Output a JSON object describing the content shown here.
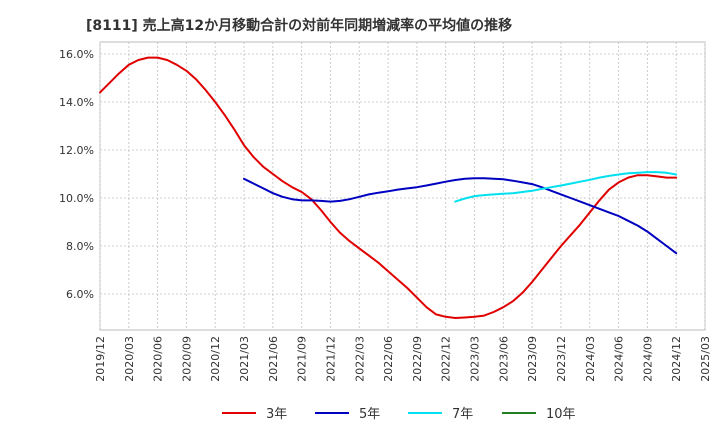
{
  "chart_data": {
    "type": "line",
    "title": "[8111]  売上高12か月移動合計の対前年同期増減率の平均値の推移",
    "xlabel": "",
    "ylabel": "",
    "ylim": [
      4.5,
      16.5
    ],
    "y_ticks": [
      6,
      8,
      10,
      12,
      14,
      16
    ],
    "y_tick_labels": [
      "6.0%",
      "8.0%",
      "10.0%",
      "12.0%",
      "14.0%",
      "16.0%"
    ],
    "x_ticks": [
      "2019/12",
      "2020/03",
      "2020/06",
      "2020/09",
      "2020/12",
      "2021/03",
      "2021/06",
      "2021/09",
      "2021/12",
      "2022/03",
      "2022/06",
      "2022/09",
      "2022/12",
      "2023/03",
      "2023/06",
      "2023/09",
      "2023/12",
      "2024/03",
      "2024/06",
      "2024/09",
      "2024/12",
      "2025/03"
    ],
    "grid": true,
    "legend_position": "bottom",
    "series": [
      {
        "name": "3年",
        "color": "#e00000",
        "x": [
          "2019/12",
          "2020/01",
          "2020/02",
          "2020/03",
          "2020/04",
          "2020/05",
          "2020/06",
          "2020/07",
          "2020/08",
          "2020/09",
          "2020/10",
          "2020/11",
          "2020/12",
          "2021/01",
          "2021/02",
          "2021/03",
          "2021/04",
          "2021/05",
          "2021/06",
          "2021/07",
          "2021/08",
          "2021/09",
          "2021/10",
          "2021/11",
          "2021/12",
          "2022/01",
          "2022/02",
          "2022/03",
          "2022/04",
          "2022/05",
          "2022/06",
          "2022/07",
          "2022/08",
          "2022/09",
          "2022/10",
          "2022/11",
          "2022/12",
          "2023/01",
          "2023/02",
          "2023/03",
          "2023/04",
          "2023/05",
          "2023/06",
          "2023/07",
          "2023/08",
          "2023/09",
          "2023/10",
          "2023/11",
          "2023/12",
          "2024/01",
          "2024/02",
          "2024/03",
          "2024/04",
          "2024/05",
          "2024/06",
          "2024/07",
          "2024/08",
          "2024/09",
          "2024/10",
          "2024/11",
          "2024/12"
        ],
        "values": [
          14.4,
          14.8,
          15.2,
          15.55,
          15.75,
          15.85,
          15.85,
          15.75,
          15.55,
          15.3,
          14.95,
          14.5,
          14.0,
          13.45,
          12.85,
          12.2,
          11.7,
          11.3,
          11.0,
          10.7,
          10.45,
          10.25,
          9.95,
          9.5,
          9.0,
          8.55,
          8.2,
          7.9,
          7.6,
          7.3,
          6.95,
          6.6,
          6.25,
          5.85,
          5.45,
          5.15,
          5.05,
          5.0,
          5.02,
          5.05,
          5.1,
          5.25,
          5.45,
          5.7,
          6.05,
          6.5,
          7.0,
          7.5,
          8.0,
          8.45,
          8.9,
          9.4,
          9.9,
          10.35,
          10.65,
          10.85,
          10.95,
          10.95,
          10.9,
          10.85,
          10.85
        ]
      },
      {
        "name": "5年",
        "color": "#0000c0",
        "x": [
          "2021/03",
          "2021/04",
          "2021/05",
          "2021/06",
          "2021/07",
          "2021/08",
          "2021/09",
          "2021/10",
          "2021/11",
          "2021/12",
          "2022/01",
          "2022/02",
          "2022/03",
          "2022/04",
          "2022/05",
          "2022/06",
          "2022/07",
          "2022/08",
          "2022/09",
          "2022/10",
          "2022/11",
          "2022/12",
          "2023/01",
          "2023/02",
          "2023/03",
          "2023/04",
          "2023/05",
          "2023/06",
          "2023/07",
          "2023/08",
          "2023/09",
          "2023/10",
          "2023/11",
          "2023/12",
          "2024/01",
          "2024/02",
          "2024/03",
          "2024/04",
          "2024/05",
          "2024/06",
          "2024/07",
          "2024/08",
          "2024/09",
          "2024/10",
          "2024/11",
          "2024/12"
        ],
        "values": [
          10.8,
          10.6,
          10.4,
          10.2,
          10.05,
          9.95,
          9.9,
          9.9,
          9.88,
          9.85,
          9.88,
          9.95,
          10.05,
          10.15,
          10.22,
          10.28,
          10.35,
          10.4,
          10.45,
          10.52,
          10.6,
          10.68,
          10.75,
          10.8,
          10.82,
          10.82,
          10.8,
          10.78,
          10.72,
          10.65,
          10.58,
          10.45,
          10.3,
          10.15,
          10.0,
          9.85,
          9.7,
          9.55,
          9.4,
          9.25,
          9.05,
          8.85,
          8.6,
          8.3,
          8.0,
          7.7
        ]
      },
      {
        "name": "7年",
        "color": "#00e0f0",
        "x": [
          "2023/01",
          "2023/02",
          "2023/03",
          "2023/04",
          "2023/05",
          "2023/06",
          "2023/07",
          "2023/08",
          "2023/09",
          "2023/10",
          "2023/11",
          "2023/12",
          "2024/01",
          "2024/02",
          "2024/03",
          "2024/04",
          "2024/05",
          "2024/06",
          "2024/07",
          "2024/08",
          "2024/09",
          "2024/10",
          "2024/11",
          "2024/12"
        ],
        "values": [
          9.85,
          9.98,
          10.08,
          10.12,
          10.15,
          10.18,
          10.2,
          10.25,
          10.3,
          10.38,
          10.45,
          10.52,
          10.6,
          10.68,
          10.76,
          10.85,
          10.92,
          10.98,
          11.03,
          11.05,
          11.08,
          11.08,
          11.05,
          10.98
        ]
      },
      {
        "name": "10年",
        "color": "#208020",
        "x": [],
        "values": []
      }
    ]
  }
}
